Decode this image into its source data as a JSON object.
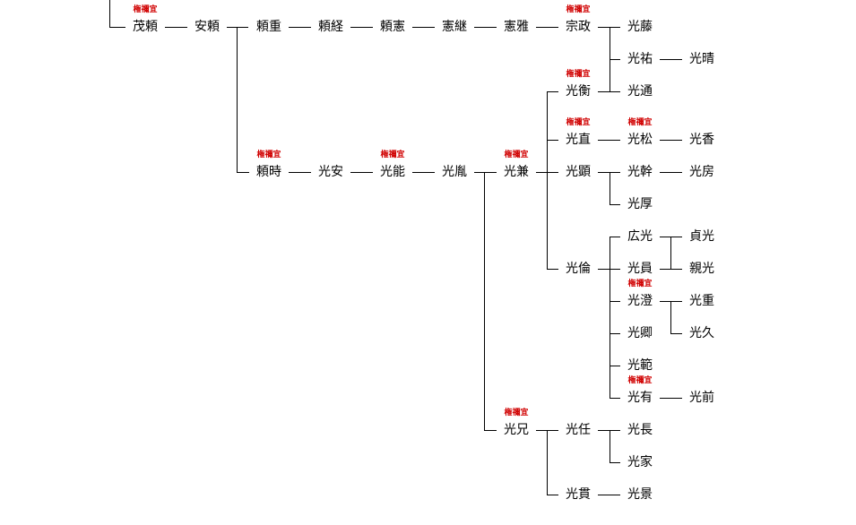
{
  "tag_label": "権禰宜",
  "colors": {
    "line": "#000000",
    "text": "#000000",
    "tag": "#d00000"
  },
  "nodes": [
    {
      "id": "shigeyori",
      "name": "茂頼",
      "tag": true
    },
    {
      "id": "yasuyori",
      "name": "安頼"
    },
    {
      "id": "yorishige",
      "name": "頼重"
    },
    {
      "id": "yoritsune",
      "name": "頼経"
    },
    {
      "id": "yorinori",
      "name": "頼憲"
    },
    {
      "id": "noritsugu",
      "name": "憲継"
    },
    {
      "id": "norimasa",
      "name": "憲雅"
    },
    {
      "id": "munemasa",
      "name": "宗政",
      "tag": true
    },
    {
      "id": "mitsufuji",
      "name": "光藤"
    },
    {
      "id": "mitsusuke",
      "name": "光祐"
    },
    {
      "id": "mitsuharu",
      "name": "光晴"
    },
    {
      "id": "mitsuhira",
      "name": "光衡",
      "tag": true
    },
    {
      "id": "mitsumichi",
      "name": "光通"
    },
    {
      "id": "yoritoki",
      "name": "頼時",
      "tag": true
    },
    {
      "id": "mitsuyasu",
      "name": "光安"
    },
    {
      "id": "mitsuyoshi",
      "name": "光能",
      "tag": true
    },
    {
      "id": "mitsutane",
      "name": "光胤"
    },
    {
      "id": "mitsukane",
      "name": "光兼",
      "tag": true
    },
    {
      "id": "mitsunao",
      "name": "光直",
      "tag": true
    },
    {
      "id": "mitsumatsu",
      "name": "光松",
      "tag": true
    },
    {
      "id": "mitsuka",
      "name": "光香"
    },
    {
      "id": "mitsuaki",
      "name": "光顕"
    },
    {
      "id": "mitsumoto",
      "name": "光幹"
    },
    {
      "id": "mitsufusa",
      "name": "光房"
    },
    {
      "id": "mitsuatsu",
      "name": "光厚"
    },
    {
      "id": "mitsutomo",
      "name": "光倫"
    },
    {
      "id": "hiromitsu",
      "name": "広光"
    },
    {
      "id": "sadamitsu",
      "name": "貞光"
    },
    {
      "id": "mitsukazu",
      "name": "光員"
    },
    {
      "id": "chikamitsu",
      "name": "親光"
    },
    {
      "id": "mitsusumi",
      "name": "光澄",
      "tag": true
    },
    {
      "id": "mitsushige",
      "name": "光重"
    },
    {
      "id": "mitsuhisa",
      "name": "光久"
    },
    {
      "id": "mitsunori",
      "name": "光卿"
    },
    {
      "id": "mitsunori2",
      "name": "光範"
    },
    {
      "id": "mitsuari",
      "name": "光有",
      "tag": true
    },
    {
      "id": "mitsusaki",
      "name": "光前"
    },
    {
      "id": "mitsue",
      "name": "光兄",
      "tag": true
    },
    {
      "id": "mitsutou",
      "name": "光任"
    },
    {
      "id": "mitsunaga",
      "name": "光長"
    },
    {
      "id": "mitsuie",
      "name": "光家"
    },
    {
      "id": "mitsutsura",
      "name": "光貫"
    },
    {
      "id": "mitsukage",
      "name": "光景"
    }
  ]
}
